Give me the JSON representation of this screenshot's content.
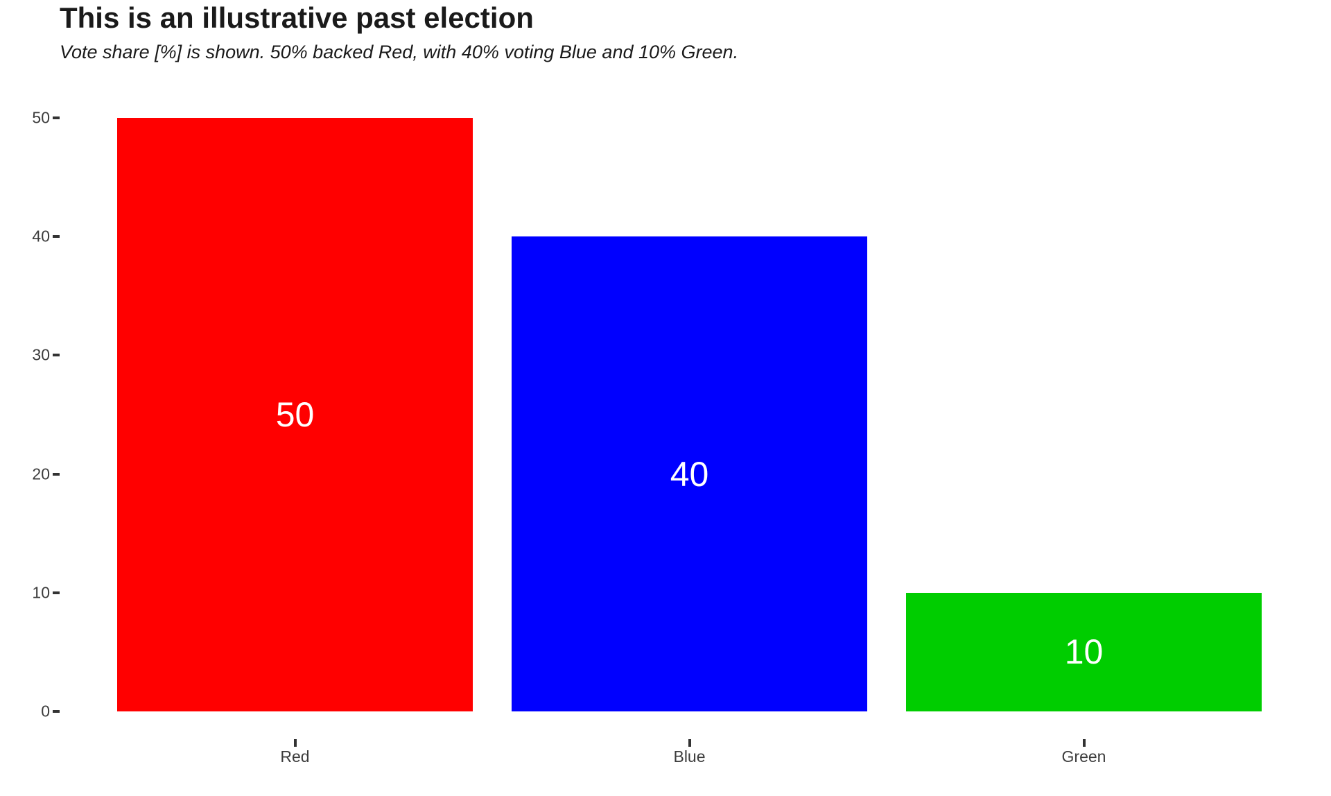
{
  "chart_data": {
    "type": "bar",
    "title": "This is an illustrative past election",
    "subtitle": "Vote share [%] is shown. 50% backed Red, with 40% voting Blue and 10% Green.",
    "categories": [
      "Red",
      "Blue",
      "Green"
    ],
    "values": [
      50,
      40,
      10
    ],
    "value_labels": [
      "50",
      "40",
      "10"
    ],
    "bar_colors": [
      "#FF0000",
      "#0000FF",
      "#00CD00"
    ],
    "value_label_color": "#ffffff",
    "yticks": [
      0,
      10,
      20,
      30,
      40,
      50
    ],
    "ytick_labels": [
      "0",
      "10",
      "20",
      "30",
      "40",
      "50"
    ],
    "ylim": [
      0,
      50
    ],
    "xlabel": "",
    "ylabel": "",
    "grid": false,
    "legend": "none",
    "background_color": "#ffffff",
    "axis_text_color": "#3c3c3c",
    "tick_mark_color": "#333333",
    "title_color": "#1a1a1a"
  }
}
